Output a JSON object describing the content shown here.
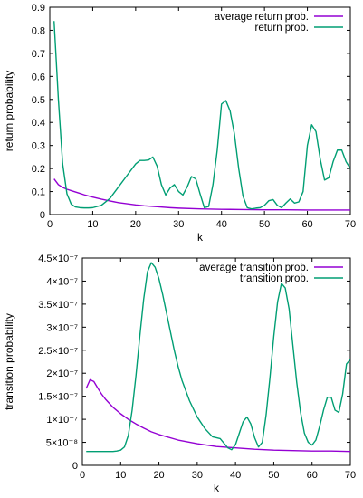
{
  "chart_data": [
    {
      "type": "line",
      "xlabel": "k",
      "ylabel": "return probability",
      "xlim": [
        0,
        70
      ],
      "ylim": [
        0,
        0.9
      ],
      "xticks": [
        "0",
        "10",
        "20",
        "30",
        "40",
        "50",
        "60",
        "70"
      ],
      "yticks": [
        "0",
        "0.1",
        "0.2",
        "0.3",
        "0.4",
        "0.5",
        "0.6",
        "0.7",
        "0.8",
        "0.9"
      ],
      "xtick_values": [
        0,
        10,
        20,
        30,
        40,
        50,
        60,
        70
      ],
      "ytick_values": [
        0,
        0.1,
        0.2,
        0.3,
        0.4,
        0.5,
        0.6,
        0.7,
        0.8,
        0.9
      ],
      "grid": false,
      "legend_position": "top-right",
      "series": [
        {
          "name": "average return prob.",
          "color": "#9400d3",
          "x": [
            1,
            2,
            3,
            4,
            5,
            6,
            7,
            8,
            9,
            10,
            12,
            14,
            16,
            18,
            20,
            22,
            25,
            28,
            30,
            35,
            40,
            45,
            50,
            55,
            60,
            65,
            70
          ],
          "y": [
            0.155,
            0.13,
            0.118,
            0.11,
            0.104,
            0.098,
            0.092,
            0.086,
            0.081,
            0.076,
            0.067,
            0.059,
            0.052,
            0.047,
            0.042,
            0.038,
            0.034,
            0.03,
            0.028,
            0.025,
            0.023,
            0.022,
            0.021,
            0.021,
            0.02,
            0.02,
            0.02
          ]
        },
        {
          "name": "return prob.",
          "color": "#009e73",
          "x": [
            1,
            2,
            3,
            4,
            5,
            6,
            7,
            8,
            9,
            10,
            12,
            14,
            16,
            18,
            20,
            21,
            22,
            23,
            24,
            25,
            26,
            27,
            28,
            29,
            30,
            31,
            32,
            33,
            34,
            35,
            36,
            37,
            38,
            39,
            40,
            41,
            42,
            43,
            44,
            45,
            46,
            47,
            48,
            49,
            50,
            51,
            52,
            53,
            54,
            55,
            56,
            57,
            58,
            59,
            60,
            61,
            62,
            63,
            64,
            65,
            66,
            67,
            68,
            69,
            70
          ],
          "y": [
            0.84,
            0.5,
            0.22,
            0.09,
            0.045,
            0.033,
            0.03,
            0.029,
            0.029,
            0.03,
            0.04,
            0.07,
            0.12,
            0.17,
            0.22,
            0.235,
            0.235,
            0.237,
            0.25,
            0.21,
            0.13,
            0.085,
            0.115,
            0.13,
            0.1,
            0.085,
            0.12,
            0.165,
            0.155,
            0.09,
            0.03,
            0.035,
            0.13,
            0.28,
            0.48,
            0.495,
            0.45,
            0.35,
            0.2,
            0.08,
            0.03,
            0.025,
            0.028,
            0.03,
            0.04,
            0.06,
            0.065,
            0.04,
            0.03,
            0.05,
            0.068,
            0.05,
            0.055,
            0.1,
            0.3,
            0.39,
            0.36,
            0.24,
            0.15,
            0.16,
            0.23,
            0.28,
            0.28,
            0.23,
            0.2
          ]
        }
      ]
    },
    {
      "type": "line",
      "xlabel": "k",
      "ylabel": "transition probability",
      "xlim": [
        0,
        70
      ],
      "ylim": [
        0,
        4.5e-07
      ],
      "xticks": [
        "0",
        "10",
        "20",
        "30",
        "40",
        "50",
        "60",
        "70"
      ],
      "yticks": [
        "0",
        "5×10⁻⁸",
        "1×10⁻⁷",
        "1.5×10⁻⁷",
        "2×10⁻⁷",
        "2.5×10⁻⁷",
        "3×10⁻⁷",
        "3.5×10⁻⁷",
        "4×10⁻⁷",
        "4.5×10⁻⁷"
      ],
      "xtick_values": [
        0,
        10,
        20,
        30,
        40,
        50,
        60,
        70
      ],
      "ytick_values": [
        0,
        5e-08,
        1e-07,
        1.5e-07,
        2e-07,
        2.5e-07,
        3e-07,
        3.5e-07,
        4e-07,
        4.5e-07
      ],
      "grid": false,
      "legend_position": "top-right",
      "series": [
        {
          "name": "average transition prob.",
          "color": "#9400d3",
          "x": [
            1,
            2,
            3,
            4,
            5,
            6,
            8,
            10,
            12,
            14,
            16,
            18,
            20,
            25,
            30,
            35,
            40,
            45,
            50,
            55,
            60,
            65,
            70
          ],
          "y": [
            1.67e-07,
            1.86e-07,
            1.82e-07,
            1.68e-07,
            1.55e-07,
            1.44e-07,
            1.26e-07,
            1.12e-07,
            1e-07,
            9e-08,
            8.1e-08,
            7.3e-08,
            6.7e-08,
            5.5e-08,
            4.7e-08,
            4.1e-08,
            3.8e-08,
            3.5e-08,
            3.3e-08,
            3.2e-08,
            3.1e-08,
            3.1e-08,
            3e-08
          ]
        },
        {
          "name": "transition prob.",
          "color": "#009e73",
          "x": [
            1,
            2,
            3,
            4,
            5,
            6,
            7,
            8,
            9,
            10,
            11,
            12,
            13,
            14,
            15,
            16,
            17,
            18,
            19,
            20,
            21,
            22,
            23,
            24,
            25,
            26,
            28,
            30,
            32,
            34,
            36,
            37,
            38,
            39,
            40,
            41,
            42,
            43,
            44,
            45,
            46,
            47,
            48,
            49,
            50,
            51,
            52,
            53,
            54,
            55,
            56,
            57,
            58,
            59,
            60,
            61,
            62,
            63,
            64,
            65,
            66,
            67,
            68,
            69,
            70
          ],
          "y": [
            3e-08,
            3e-08,
            3e-08,
            3e-08,
            3e-08,
            3e-08,
            3e-08,
            3e-08,
            3.1e-08,
            3.3e-08,
            4e-08,
            6.5e-08,
            1.2e-07,
            1.95e-07,
            2.8e-07,
            3.6e-07,
            4.2e-07,
            4.4e-07,
            4.3e-07,
            4.05e-07,
            3.7e-07,
            3.3e-07,
            2.9e-07,
            2.5e-07,
            2.15e-07,
            1.85e-07,
            1.4e-07,
            1.05e-07,
            8e-08,
            6.2e-08,
            5.8e-08,
            4.8e-08,
            3.8e-08,
            3.4e-08,
            4.5e-08,
            7e-08,
            9.5e-08,
            1.05e-07,
            9e-08,
            6e-08,
            4e-08,
            5e-08,
            1.1e-07,
            1.9e-07,
            2.8e-07,
            3.55e-07,
            3.95e-07,
            3.85e-07,
            3.4e-07,
            2.6e-07,
            1.8e-07,
            1.15e-07,
            7e-08,
            5e-08,
            4.4e-08,
            5.5e-08,
            8.5e-08,
            1.2e-07,
            1.48e-07,
            1.48e-07,
            1.2e-07,
            1.15e-07,
            1.55e-07,
            2.2e-07,
            2.3e-07
          ]
        }
      ]
    }
  ]
}
